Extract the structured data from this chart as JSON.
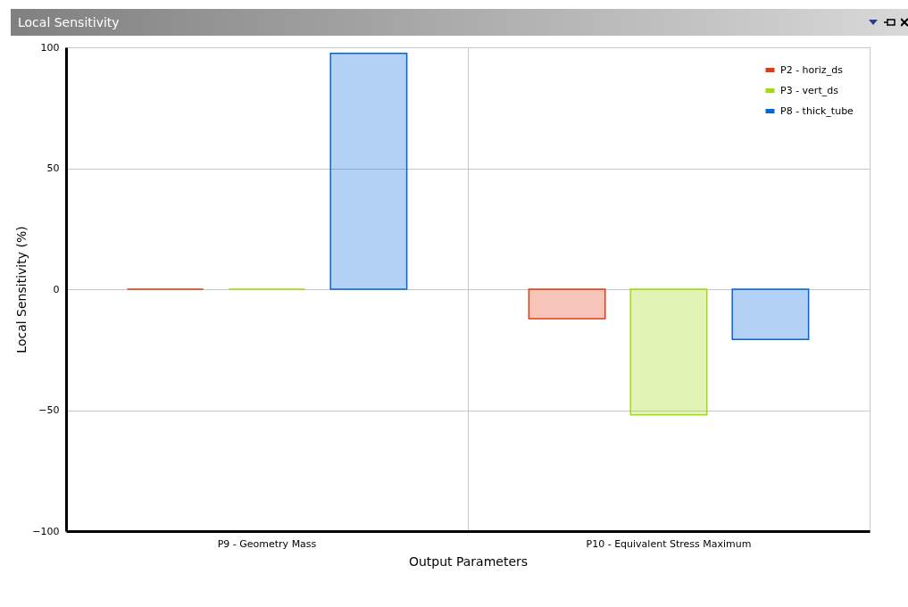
{
  "chart_data": {
    "type": "bar",
    "title": "Local Sensitivity",
    "xlabel": "Output Parameters",
    "ylabel": "Local Sensitivity (%)",
    "categories": [
      "P9 - Geometry Mass",
      "P10 - Equivalent Stress Maximum"
    ],
    "series": [
      {
        "name": "P2 - horiz_ds",
        "color": "#e03c14",
        "values": [
          0,
          -12.2
        ]
      },
      {
        "name": "P3 - vert_ds",
        "color": "#9edc0a",
        "values": [
          0,
          -51.9
        ]
      },
      {
        "name": "P8 - thick_tube",
        "color": "#0066dd",
        "values": [
          97.5,
          -20.8
        ]
      }
    ],
    "ylim": [
      -100,
      100
    ],
    "yticks": [
      -100,
      -50,
      0,
      50,
      100
    ],
    "grid": true,
    "legend": "top right"
  }
}
